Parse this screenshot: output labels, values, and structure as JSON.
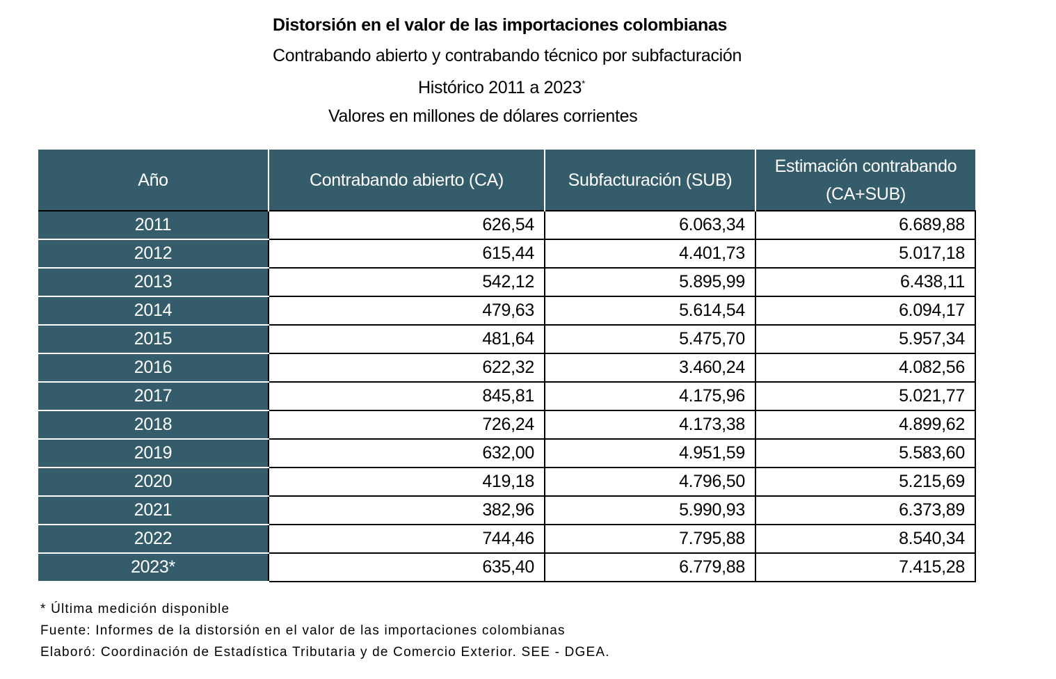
{
  "title": "Distorsión en el valor de las importaciones colombianas",
  "subtitle": "Contrabando abierto y contrabando técnico por subfacturación",
  "period": "Histórico 2011 a 2023",
  "period_mark": "*",
  "units": "Valores en millones de dólares corrientes",
  "table": {
    "header_color": "#355c6b",
    "columns": [
      "Año",
      "Contrabando abierto (CA)",
      "Subfacturación (SUB)",
      "Estimación contrabando (CA+SUB)"
    ],
    "rows": [
      [
        "2011",
        "626,54",
        "6.063,34",
        "6.689,88"
      ],
      [
        "2012",
        "615,44",
        "4.401,73",
        "5.017,18"
      ],
      [
        "2013",
        "542,12",
        "5.895,99",
        "6.438,11"
      ],
      [
        "2014",
        "479,63",
        "5.614,54",
        "6.094,17"
      ],
      [
        "2015",
        "481,64",
        "5.475,70",
        "5.957,34"
      ],
      [
        "2016",
        "622,32",
        "3.460,24",
        "4.082,56"
      ],
      [
        "2017",
        "845,81",
        "4.175,96",
        "5.021,77"
      ],
      [
        "2018",
        "726,24",
        "4.173,38",
        "4.899,62"
      ],
      [
        "2019",
        "632,00",
        "4.951,59",
        "5.583,60"
      ],
      [
        "2020",
        "419,18",
        "4.796,50",
        "5.215,69"
      ],
      [
        "2021",
        "382,96",
        "5.990,93",
        "6.373,89"
      ],
      [
        "2022",
        "744,46",
        "7.795,88",
        "8.540,34"
      ],
      [
        "2023*",
        "635,40",
        "6.779,88",
        "7.415,28"
      ]
    ]
  },
  "notes": [
    "* Última medición disponible",
    "Fuente: Informes de la distorsión en el valor de las importaciones colombianas",
    "Elaboró: Coordinación de Estadística Tributaria y de Comercio Exterior. SEE - DGEA."
  ]
}
